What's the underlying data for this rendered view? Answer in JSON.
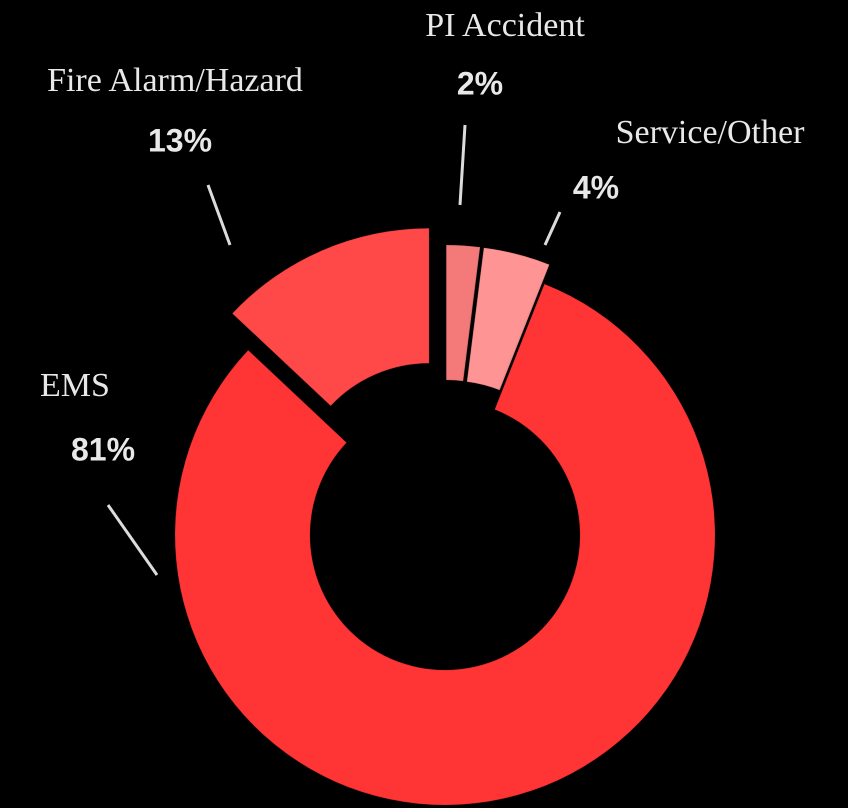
{
  "chart_data": {
    "type": "donut",
    "categories": [
      "Fire Alarm/Hazard",
      "PI Accident",
      "Service/Other",
      "EMS"
    ],
    "values": [
      13,
      2,
      4,
      81
    ],
    "value_labels": [
      "13%",
      "2%",
      "4%",
      "81%"
    ],
    "colors": [
      "#ff4848",
      "#f47a7a",
      "#ff9494",
      "#ff3434"
    ]
  }
}
